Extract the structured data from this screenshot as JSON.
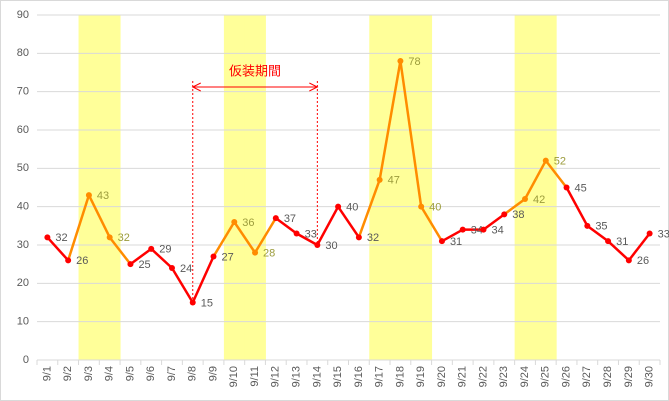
{
  "chart_data": {
    "type": "line",
    "categories": [
      "9/1",
      "9/2",
      "9/3",
      "9/4",
      "9/5",
      "9/6",
      "9/7",
      "9/8",
      "9/9",
      "9/10",
      "9/11",
      "9/12",
      "9/13",
      "9/14",
      "9/15",
      "9/16",
      "9/17",
      "9/18",
      "9/19",
      "9/20",
      "9/21",
      "9/22",
      "9/23",
      "9/24",
      "9/25",
      "9/26",
      "9/27",
      "9/28",
      "9/29",
      "9/30"
    ],
    "values": [
      32,
      26,
      43,
      32,
      25,
      29,
      24,
      15,
      27,
      36,
      28,
      37,
      33,
      30,
      40,
      32,
      47,
      78,
      40,
      31,
      34,
      34,
      38,
      42,
      52,
      45,
      35,
      31,
      26,
      33
    ],
    "color": "#ff0000",
    "highlight_color": "#ff8c00",
    "band_color": "#ffff99",
    "label_color": "#595959",
    "highlight_label_color": "#9c9c3c",
    "highlight": [
      "9/3",
      "9/4",
      "9/10",
      "9/11",
      "9/17",
      "9/18",
      "9/19",
      "9/24",
      "9/25"
    ],
    "annotation": {
      "text": "仮装期間",
      "from": "9/8",
      "to": "9/14"
    },
    "ylim": [
      0,
      90
    ],
    "yticks": [
      0,
      10,
      20,
      30,
      40,
      50,
      60,
      70,
      80,
      90
    ],
    "grid": true
  }
}
